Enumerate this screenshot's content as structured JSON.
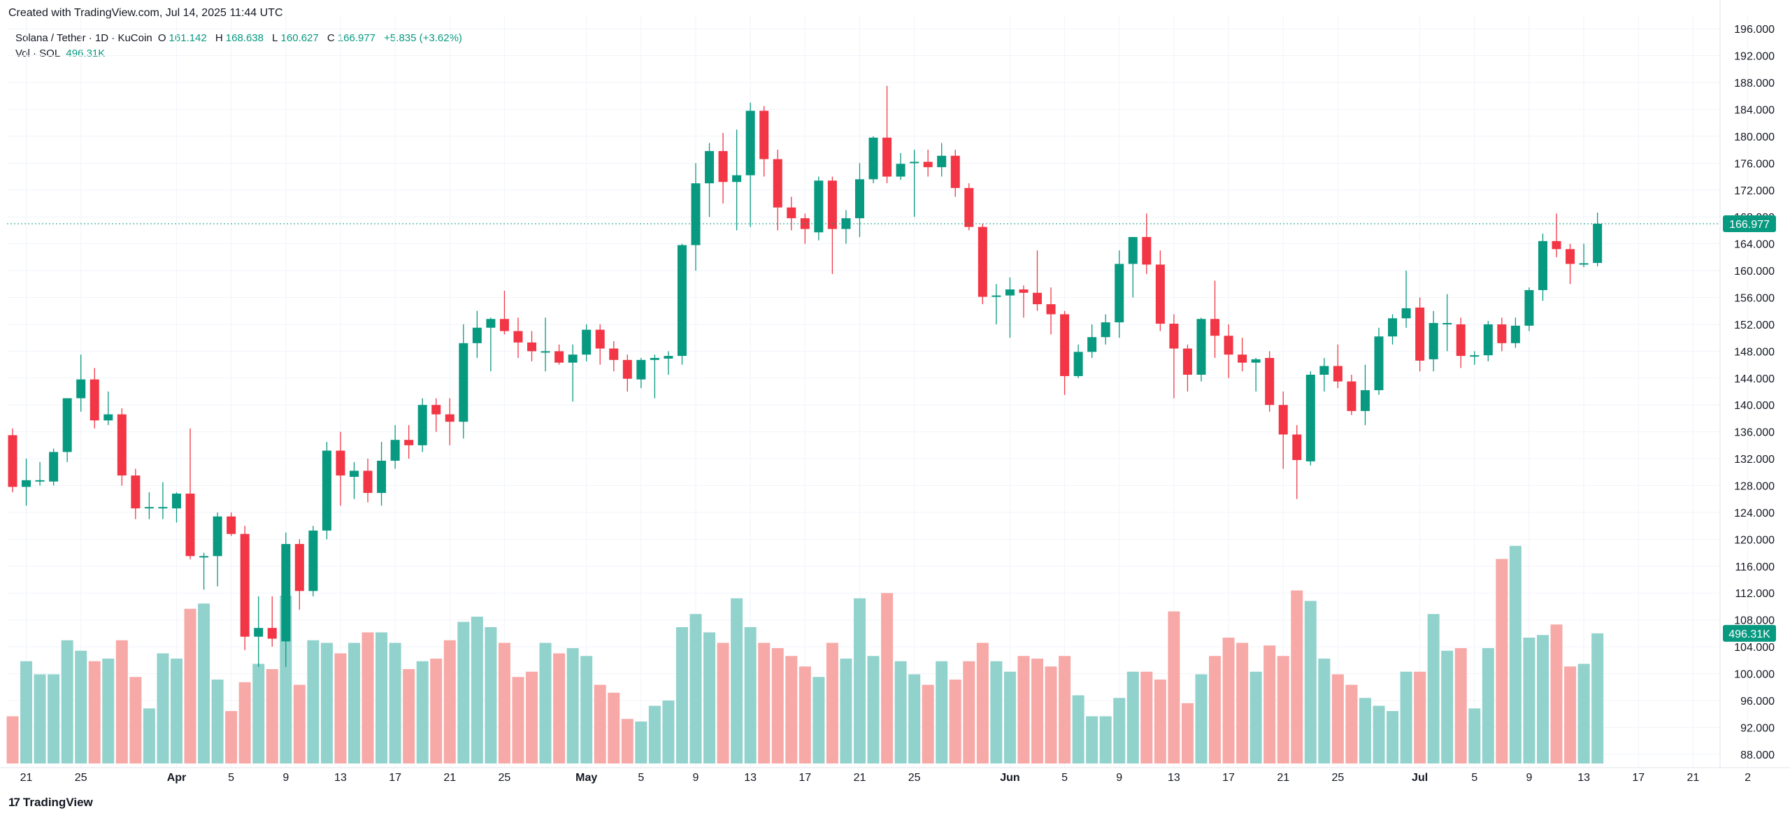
{
  "header": {
    "created": "Created with TradingView.com, Jul 14, 2025 11:44 UTC"
  },
  "legend": {
    "symbol": "Solana / Tether · 1D · KuCoin",
    "o_label": "O",
    "o": "161.142",
    "h_label": "H",
    "h": "168.638",
    "l_label": "L",
    "l": "160.627",
    "c_label": "C",
    "c": "166.977",
    "change": "+5.835 (+3.62%)",
    "vol_label": "Vol · SOL",
    "vol": "496.31K"
  },
  "footer": {
    "brand": "TradingView",
    "brand_mark": "17"
  },
  "colors": {
    "up": "#089981",
    "down": "#f23645",
    "up_vol": "#92d2cc",
    "down_vol": "#f7a9a7",
    "grid": "#f0f3fa",
    "axis_text": "#131722"
  },
  "chart_data": {
    "type": "candlestick",
    "title": "Solana / Tether · 1D · KuCoin",
    "ylim": [
      86,
      198
    ],
    "y_ticks": [
      88,
      92,
      96,
      100,
      104,
      108,
      112,
      116,
      120,
      124,
      128,
      132,
      136,
      140,
      144,
      148,
      152,
      156,
      160,
      164,
      168,
      172,
      176,
      180,
      184,
      188,
      192,
      196
    ],
    "y_tick_labels": [
      "88.000",
      "92.000",
      "96.000",
      "100.000",
      "104.000",
      "108.000",
      "112.000",
      "116.000",
      "120.000",
      "124.000",
      "128.000",
      "132.000",
      "136.000",
      "140.000",
      "144.000",
      "148.000",
      "152.000",
      "156.000",
      "160.000",
      "164.000",
      "168.000",
      "172.000",
      "176.000",
      "180.000",
      "184.000",
      "188.000",
      "192.000",
      "196.000"
    ],
    "x_ticks": [
      {
        "i": 1,
        "label": "21",
        "bold": false
      },
      {
        "i": 5,
        "label": "25",
        "bold": false
      },
      {
        "i": 12,
        "label": "Apr",
        "bold": true
      },
      {
        "i": 16,
        "label": "5",
        "bold": false
      },
      {
        "i": 20,
        "label": "9",
        "bold": false
      },
      {
        "i": 24,
        "label": "13",
        "bold": false
      },
      {
        "i": 28,
        "label": "17",
        "bold": false
      },
      {
        "i": 32,
        "label": "21",
        "bold": false
      },
      {
        "i": 36,
        "label": "25",
        "bold": false
      },
      {
        "i": 42,
        "label": "May",
        "bold": true
      },
      {
        "i": 46,
        "label": "5",
        "bold": false
      },
      {
        "i": 50,
        "label": "9",
        "bold": false
      },
      {
        "i": 54,
        "label": "13",
        "bold": false
      },
      {
        "i": 58,
        "label": "17",
        "bold": false
      },
      {
        "i": 62,
        "label": "21",
        "bold": false
      },
      {
        "i": 66,
        "label": "25",
        "bold": false
      },
      {
        "i": 73,
        "label": "Jun",
        "bold": true
      },
      {
        "i": 77,
        "label": "5",
        "bold": false
      },
      {
        "i": 81,
        "label": "9",
        "bold": false
      },
      {
        "i": 85,
        "label": "13",
        "bold": false
      },
      {
        "i": 89,
        "label": "17",
        "bold": false
      },
      {
        "i": 93,
        "label": "21",
        "bold": false
      },
      {
        "i": 97,
        "label": "25",
        "bold": false
      },
      {
        "i": 103,
        "label": "Jul",
        "bold": true
      },
      {
        "i": 107,
        "label": "5",
        "bold": false
      },
      {
        "i": 111,
        "label": "9",
        "bold": false
      },
      {
        "i": 115,
        "label": "13",
        "bold": false
      },
      {
        "i": 119,
        "label": "17",
        "bold": false
      },
      {
        "i": 123,
        "label": "21",
        "bold": false
      },
      {
        "i": 127,
        "label": "2",
        "bold": false
      }
    ],
    "last_price": 166.977,
    "last_price_label": "166.977",
    "last_volume_label": "496.31K",
    "volume_unit": "K SOL",
    "candles": [
      {
        "o": 135.5,
        "h": 136.5,
        "l": 127,
        "c": 127.8,
        "v": 180
      },
      {
        "o": 127.8,
        "h": 132,
        "l": 125,
        "c": 128.8,
        "v": 390
      },
      {
        "o": 128.8,
        "h": 131.5,
        "l": 128,
        "c": 128.8,
        "v": 340
      },
      {
        "o": 128.6,
        "h": 133.5,
        "l": 128,
        "c": 133,
        "v": 340
      },
      {
        "o": 133,
        "h": 141,
        "l": 131.5,
        "c": 141,
        "v": 470
      },
      {
        "o": 141,
        "h": 147.5,
        "l": 139,
        "c": 143.8,
        "v": 430
      },
      {
        "o": 143.8,
        "h": 145.5,
        "l": 136.5,
        "c": 137.7,
        "v": 390
      },
      {
        "o": 137.7,
        "h": 142,
        "l": 137,
        "c": 138.6,
        "v": 400
      },
      {
        "o": 138.6,
        "h": 139.5,
        "l": 128,
        "c": 129.5,
        "v": 470
      },
      {
        "o": 129.5,
        "h": 130.5,
        "l": 123,
        "c": 124.6,
        "v": 330
      },
      {
        "o": 124.6,
        "h": 127,
        "l": 123,
        "c": 124.8,
        "v": 210
      },
      {
        "o": 124.8,
        "h": 128.5,
        "l": 123,
        "c": 124.8,
        "v": 420
      },
      {
        "o": 124.6,
        "h": 127,
        "l": 122.5,
        "c": 126.8,
        "v": 400
      },
      {
        "o": 126.8,
        "h": 136.5,
        "l": 117,
        "c": 117.5,
        "v": 590
      },
      {
        "o": 117.5,
        "h": 118,
        "l": 112.5,
        "c": 117.5,
        "v": 610
      },
      {
        "o": 117.5,
        "h": 124,
        "l": 113,
        "c": 123.4,
        "v": 320
      },
      {
        "o": 123.4,
        "h": 124,
        "l": 120.5,
        "c": 120.8,
        "v": 200
      },
      {
        "o": 120.8,
        "h": 122,
        "l": 103.5,
        "c": 105.5,
        "v": 310
      },
      {
        "o": 105.5,
        "h": 111.5,
        "l": 101,
        "c": 106.8,
        "v": 380
      },
      {
        "o": 106.8,
        "h": 111.5,
        "l": 104,
        "c": 105.2,
        "v": 360
      },
      {
        "o": 104.8,
        "h": 121,
        "l": 101,
        "c": 119.3,
        "v": 640
      },
      {
        "o": 119.3,
        "h": 120,
        "l": 109.5,
        "c": 112.3,
        "v": 300
      },
      {
        "o": 112.3,
        "h": 122,
        "l": 111.5,
        "c": 121.3,
        "v": 470
      },
      {
        "o": 121.3,
        "h": 134.5,
        "l": 120,
        "c": 133.2,
        "v": 460
      },
      {
        "o": 133.2,
        "h": 136,
        "l": 125,
        "c": 129.5,
        "v": 420
      },
      {
        "o": 129.3,
        "h": 131.5,
        "l": 126,
        "c": 130.2,
        "v": 460
      },
      {
        "o": 130.2,
        "h": 132,
        "l": 125.5,
        "c": 126.9,
        "v": 500
      },
      {
        "o": 126.9,
        "h": 134.5,
        "l": 125,
        "c": 131.7,
        "v": 500
      },
      {
        "o": 131.7,
        "h": 137,
        "l": 130.5,
        "c": 134.8,
        "v": 460
      },
      {
        "o": 134.8,
        "h": 137,
        "l": 132,
        "c": 134,
        "v": 360
      },
      {
        "o": 134,
        "h": 141,
        "l": 133,
        "c": 140,
        "v": 390
      },
      {
        "o": 140,
        "h": 141,
        "l": 136,
        "c": 138.6,
        "v": 400
      },
      {
        "o": 138.6,
        "h": 141,
        "l": 134,
        "c": 137.5,
        "v": 470
      },
      {
        "o": 137.5,
        "h": 152,
        "l": 135,
        "c": 149.2,
        "v": 540
      },
      {
        "o": 149.2,
        "h": 154,
        "l": 147,
        "c": 151.5,
        "v": 560
      },
      {
        "o": 151.5,
        "h": 153,
        "l": 145,
        "c": 152.8,
        "v": 520
      },
      {
        "o": 152.8,
        "h": 157,
        "l": 150.5,
        "c": 151,
        "v": 460
      },
      {
        "o": 151,
        "h": 153,
        "l": 147,
        "c": 149.3,
        "v": 330
      },
      {
        "o": 149.3,
        "h": 151,
        "l": 146.5,
        "c": 148,
        "v": 350
      },
      {
        "o": 148,
        "h": 153,
        "l": 145,
        "c": 148,
        "v": 460
      },
      {
        "o": 148,
        "h": 149,
        "l": 146,
        "c": 146.3,
        "v": 420
      },
      {
        "o": 146.3,
        "h": 149,
        "l": 140.5,
        "c": 147.5,
        "v": 440
      },
      {
        "o": 147.5,
        "h": 152,
        "l": 146.5,
        "c": 151.2,
        "v": 410
      },
      {
        "o": 151.2,
        "h": 152,
        "l": 146,
        "c": 148.4,
        "v": 300
      },
      {
        "o": 148.4,
        "h": 149.5,
        "l": 145,
        "c": 146.7,
        "v": 270
      },
      {
        "o": 146.7,
        "h": 147.5,
        "l": 142,
        "c": 143.9,
        "v": 170
      },
      {
        "o": 143.8,
        "h": 147,
        "l": 142.5,
        "c": 146.7,
        "v": 160
      },
      {
        "o": 146.7,
        "h": 147.5,
        "l": 141,
        "c": 147,
        "v": 220
      },
      {
        "o": 146.9,
        "h": 148,
        "l": 144.5,
        "c": 147.3,
        "v": 240
      },
      {
        "o": 147.3,
        "h": 164,
        "l": 146,
        "c": 163.8,
        "v": 520
      },
      {
        "o": 163.8,
        "h": 176,
        "l": 160,
        "c": 173,
        "v": 570
      },
      {
        "o": 173,
        "h": 179,
        "l": 168,
        "c": 177.8,
        "v": 500
      },
      {
        "o": 177.8,
        "h": 180.5,
        "l": 170,
        "c": 173.2,
        "v": 460
      },
      {
        "o": 173.2,
        "h": 181,
        "l": 166,
        "c": 174.2,
        "v": 630
      },
      {
        "o": 174.2,
        "h": 185,
        "l": 166.5,
        "c": 183.8,
        "v": 520
      },
      {
        "o": 183.8,
        "h": 184.5,
        "l": 174,
        "c": 176.6,
        "v": 460
      },
      {
        "o": 176.6,
        "h": 178,
        "l": 166,
        "c": 169.4,
        "v": 440
      },
      {
        "o": 169.4,
        "h": 171,
        "l": 166,
        "c": 167.8,
        "v": 410
      },
      {
        "o": 167.8,
        "h": 168.5,
        "l": 164,
        "c": 166.2,
        "v": 370
      },
      {
        "o": 165.7,
        "h": 174,
        "l": 164.5,
        "c": 173.4,
        "v": 330
      },
      {
        "o": 173.4,
        "h": 174,
        "l": 159.5,
        "c": 166.2,
        "v": 460
      },
      {
        "o": 166.2,
        "h": 169,
        "l": 164,
        "c": 167.8,
        "v": 400
      },
      {
        "o": 167.8,
        "h": 176,
        "l": 165,
        "c": 173.6,
        "v": 630
      },
      {
        "o": 173.6,
        "h": 180,
        "l": 173,
        "c": 179.8,
        "v": 410
      },
      {
        "o": 179.8,
        "h": 187.5,
        "l": 173,
        "c": 174,
        "v": 650
      },
      {
        "o": 174,
        "h": 177.5,
        "l": 173.5,
        "c": 175.9,
        "v": 390
      },
      {
        "o": 176.2,
        "h": 178,
        "l": 168,
        "c": 176.2,
        "v": 340
      },
      {
        "o": 176.2,
        "h": 178,
        "l": 174,
        "c": 175.4,
        "v": 300
      },
      {
        "o": 175.4,
        "h": 179,
        "l": 174,
        "c": 177.1,
        "v": 390
      },
      {
        "o": 177.1,
        "h": 178,
        "l": 171,
        "c": 172.3,
        "v": 320
      },
      {
        "o": 172.3,
        "h": 173,
        "l": 166,
        "c": 166.5,
        "v": 390
      },
      {
        "o": 166.5,
        "h": 167,
        "l": 155,
        "c": 156.1,
        "v": 460
      },
      {
        "o": 156.1,
        "h": 158,
        "l": 152,
        "c": 156.3,
        "v": 390
      },
      {
        "o": 156.3,
        "h": 159,
        "l": 150,
        "c": 157.2,
        "v": 350
      },
      {
        "o": 157.2,
        "h": 157.8,
        "l": 153,
        "c": 156.7,
        "v": 410
      },
      {
        "o": 156.7,
        "h": 163,
        "l": 154,
        "c": 155,
        "v": 400
      },
      {
        "o": 155,
        "h": 157.5,
        "l": 150.5,
        "c": 153.5,
        "v": 370
      },
      {
        "o": 153.5,
        "h": 154,
        "l": 141.5,
        "c": 144.3,
        "v": 410
      },
      {
        "o": 144.3,
        "h": 149,
        "l": 144,
        "c": 147.9,
        "v": 260
      },
      {
        "o": 147.9,
        "h": 152,
        "l": 147,
        "c": 150.1,
        "v": 180
      },
      {
        "o": 150.1,
        "h": 153.5,
        "l": 149,
        "c": 152.3,
        "v": 180
      },
      {
        "o": 152.3,
        "h": 163,
        "l": 150,
        "c": 161,
        "v": 250
      },
      {
        "o": 161,
        "h": 165,
        "l": 156,
        "c": 165,
        "v": 350
      },
      {
        "o": 165,
        "h": 168.5,
        "l": 159.5,
        "c": 160.9,
        "v": 350
      },
      {
        "o": 160.9,
        "h": 163,
        "l": 151,
        "c": 152.1,
        "v": 320
      },
      {
        "o": 152.1,
        "h": 153.5,
        "l": 141,
        "c": 148.4,
        "v": 580
      },
      {
        "o": 148.4,
        "h": 149,
        "l": 142,
        "c": 144.5,
        "v": 230
      },
      {
        "o": 144.5,
        "h": 153,
        "l": 143.5,
        "c": 152.8,
        "v": 340
      },
      {
        "o": 152.8,
        "h": 158.5,
        "l": 147,
        "c": 150.3,
        "v": 410
      },
      {
        "o": 150.3,
        "h": 152,
        "l": 144,
        "c": 147.5,
        "v": 480
      },
      {
        "o": 147.5,
        "h": 150,
        "l": 145,
        "c": 146.3,
        "v": 460
      },
      {
        "o": 146.3,
        "h": 147,
        "l": 142,
        "c": 146.8,
        "v": 350
      },
      {
        "o": 147,
        "h": 148,
        "l": 139,
        "c": 140,
        "v": 450
      },
      {
        "o": 140,
        "h": 142,
        "l": 130.5,
        "c": 135.6,
        "v": 410
      },
      {
        "o": 135.6,
        "h": 137,
        "l": 126,
        "c": 131.8,
        "v": 660
      },
      {
        "o": 131.6,
        "h": 145,
        "l": 131,
        "c": 144.5,
        "v": 620
      },
      {
        "o": 144.5,
        "h": 147,
        "l": 142,
        "c": 145.8,
        "v": 400
      },
      {
        "o": 145.8,
        "h": 149,
        "l": 142.5,
        "c": 143.5,
        "v": 340
      },
      {
        "o": 143.5,
        "h": 144.5,
        "l": 138.5,
        "c": 139.1,
        "v": 300
      },
      {
        "o": 139.1,
        "h": 146,
        "l": 137,
        "c": 142.2,
        "v": 250
      },
      {
        "o": 142.2,
        "h": 151.5,
        "l": 141.5,
        "c": 150.2,
        "v": 220
      },
      {
        "o": 150.2,
        "h": 153.5,
        "l": 149,
        "c": 152.9,
        "v": 200
      },
      {
        "o": 152.9,
        "h": 160,
        "l": 151.5,
        "c": 154.4,
        "v": 350
      },
      {
        "o": 154.5,
        "h": 156,
        "l": 145,
        "c": 146.6,
        "v": 350
      },
      {
        "o": 146.8,
        "h": 154,
        "l": 145,
        "c": 152.2,
        "v": 570
      },
      {
        "o": 152.2,
        "h": 156.5,
        "l": 148,
        "c": 152.2,
        "v": 430
      },
      {
        "o": 152,
        "h": 153,
        "l": 145.5,
        "c": 147.3,
        "v": 440
      },
      {
        "o": 147.3,
        "h": 148,
        "l": 146,
        "c": 147.4,
        "v": 210
      },
      {
        "o": 147.4,
        "h": 152.5,
        "l": 146.5,
        "c": 152,
        "v": 440
      },
      {
        "o": 152,
        "h": 153,
        "l": 148,
        "c": 149.2,
        "v": 780
      },
      {
        "o": 149.2,
        "h": 153,
        "l": 148.5,
        "c": 151.8,
        "v": 830
      },
      {
        "o": 151.8,
        "h": 157.5,
        "l": 151,
        "c": 157.1,
        "v": 480
      },
      {
        "o": 157.1,
        "h": 165.5,
        "l": 155.5,
        "c": 164.4,
        "v": 490
      },
      {
        "o": 164.4,
        "h": 168.5,
        "l": 162,
        "c": 163.2,
        "v": 530
      },
      {
        "o": 163.2,
        "h": 164,
        "l": 158,
        "c": 161,
        "v": 370
      },
      {
        "o": 161.1,
        "h": 164,
        "l": 160.5,
        "c": 161.1,
        "v": 380
      },
      {
        "o": 161.142,
        "h": 168.638,
        "l": 160.627,
        "c": 166.977,
        "v": 496.31
      }
    ]
  }
}
